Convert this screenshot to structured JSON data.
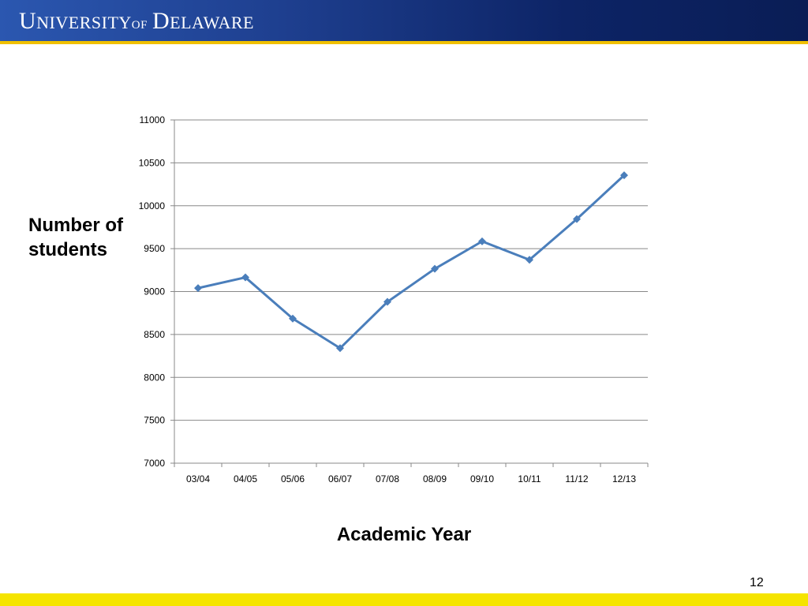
{
  "header": {
    "logo_text": "UNIVERSITY OF DELAWARE",
    "colors": {
      "banner": "#1e3f8f",
      "stripe": "#f0c000"
    }
  },
  "slide": {
    "page_number": "12",
    "footer_color": "#f5e400"
  },
  "chart_data": {
    "type": "line",
    "title": "",
    "xlabel": "Academic Year",
    "ylabel": "Number of students",
    "categories": [
      "03/04",
      "04/05",
      "05/06",
      "06/07",
      "07/08",
      "08/09",
      "09/10",
      "10/11",
      "11/12",
      "12/13"
    ],
    "series": [
      {
        "values": [
          9040,
          9165,
          8685,
          8340,
          8880,
          9265,
          9585,
          9370,
          9845,
          10355
        ],
        "color": "#4a7ebb",
        "marker": "diamond"
      }
    ],
    "ylim": [
      7000,
      11000
    ],
    "yticks": [
      "7000",
      "7500",
      "8000",
      "8500",
      "9000",
      "9500",
      "10000",
      "10500",
      "11000"
    ],
    "grid": true,
    "legend": "none"
  }
}
